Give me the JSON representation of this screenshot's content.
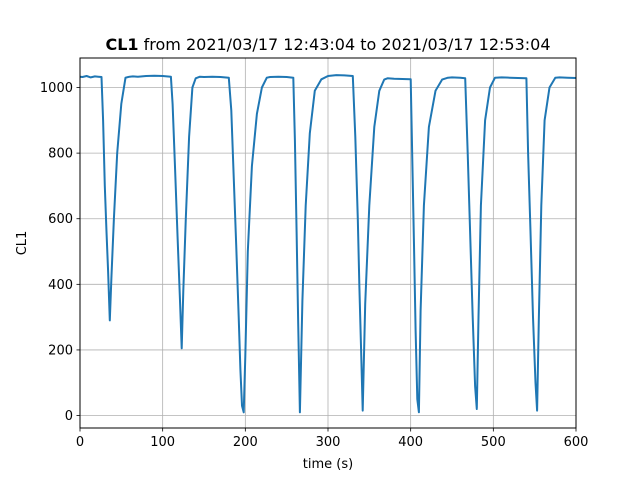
{
  "chart_data": {
    "type": "line",
    "title_bold": "CL1",
    "title_rest": " from 2021/03/17 12:43:04 to 2021/03/17 12:53:04",
    "xlabel": "time (s)",
    "ylabel": "CL1",
    "xlim": [
      0,
      600
    ],
    "ylim": [
      -38,
      1090
    ],
    "xticks": [
      0,
      100,
      200,
      300,
      400,
      500,
      600
    ],
    "yticks": [
      0,
      200,
      400,
      600,
      800,
      1000
    ],
    "grid": true,
    "legend": "none",
    "series": [
      {
        "color": "#1f77b4",
        "x": [
          0,
          3,
          8,
          13,
          18,
          22,
          26,
          28,
          30,
          32,
          34,
          36,
          38,
          41,
          45,
          50,
          55,
          60,
          64,
          70,
          80,
          90,
          100,
          110,
          112,
          115,
          118,
          121,
          123,
          125,
          128,
          132,
          136,
          140,
          145,
          150,
          160,
          170,
          180,
          183,
          186,
          189,
          192,
          194,
          196,
          198,
          200,
          203,
          208,
          214,
          220,
          226,
          230,
          240,
          250,
          258,
          260,
          262,
          264,
          266,
          269,
          273,
          278,
          284,
          292,
          300,
          310,
          320,
          330,
          333,
          336,
          338,
          340,
          342,
          345,
          350,
          356,
          362,
          368,
          372,
          380,
          390,
          400,
          402,
          404,
          406,
          408,
          410,
          412,
          416,
          422,
          430,
          438,
          445,
          450,
          460,
          466,
          469,
          472,
          475,
          478,
          480,
          482,
          485,
          490,
          496,
          502,
          510,
          520,
          530,
          540,
          542,
          545,
          548,
          551,
          553,
          555,
          558,
          562,
          568,
          575,
          580,
          590,
          600
        ],
        "y": [
          1033,
          1032,
          1035,
          1031,
          1034,
          1033,
          1032,
          900,
          700,
          560,
          440,
          290,
          420,
          600,
          800,
          950,
          1030,
          1033,
          1034,
          1033,
          1035,
          1036,
          1035,
          1033,
          950,
          750,
          550,
          350,
          205,
          380,
          600,
          850,
          1000,
          1028,
          1033,
          1032,
          1033,
          1032,
          1030,
          930,
          720,
          520,
          300,
          140,
          30,
          10,
          180,
          500,
          760,
          920,
          1000,
          1030,
          1032,
          1033,
          1032,
          1030,
          840,
          560,
          280,
          10,
          350,
          640,
          860,
          990,
          1025,
          1035,
          1038,
          1037,
          1035,
          850,
          600,
          390,
          200,
          15,
          340,
          640,
          880,
          990,
          1024,
          1028,
          1027,
          1026,
          1025,
          780,
          520,
          260,
          50,
          10,
          320,
          640,
          880,
          990,
          1024,
          1030,
          1031,
          1030,
          1028,
          800,
          550,
          300,
          90,
          20,
          300,
          640,
          900,
          1000,
          1030,
          1031,
          1030,
          1029,
          1028,
          800,
          560,
          300,
          100,
          15,
          290,
          640,
          900,
          1000,
          1030,
          1031,
          1030,
          1029
        ]
      }
    ]
  }
}
